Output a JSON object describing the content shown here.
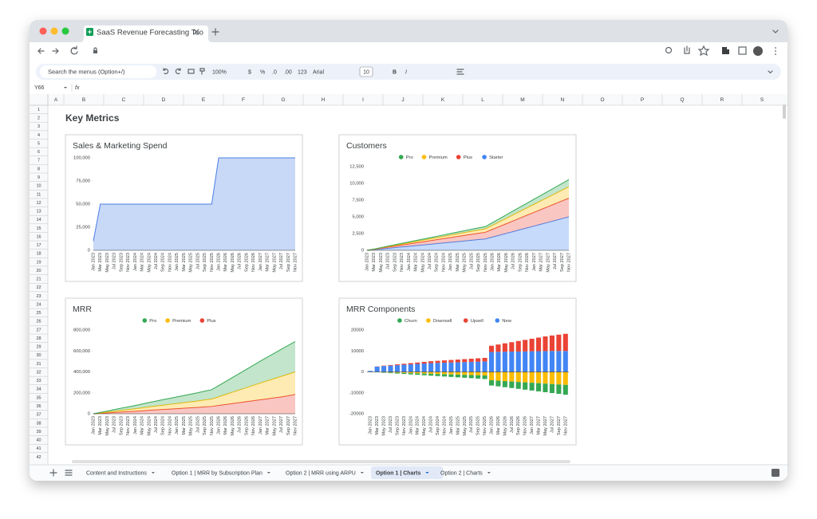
{
  "ui": {
    "tab_title": "SaaS Revenue Forecasting Too",
    "search": "Search the menus (Option+/)",
    "toolbar": [
      "100%",
      "$",
      "%",
      ".0",
      ".00",
      "123",
      "Arial",
      "10",
      "B",
      "I"
    ],
    "name_box": "Y66",
    "fx": "fx",
    "columns": [
      "A",
      "B",
      "C",
      "D",
      "E",
      "F",
      "G",
      "H",
      "I",
      "J",
      "K",
      "L",
      "M",
      "N",
      "O",
      "P",
      "Q",
      "R",
      "S"
    ],
    "rows": [
      1,
      2,
      3,
      4,
      5,
      6,
      7,
      8,
      9,
      10,
      11,
      12,
      13,
      14,
      15,
      16,
      17,
      18,
      19,
      20,
      21,
      22,
      23,
      24,
      25,
      26,
      27,
      28,
      29,
      30,
      31,
      32,
      33,
      34,
      35,
      36,
      37,
      38,
      39,
      40,
      41,
      42
    ],
    "heading": "Key Metrics",
    "sheets": [
      "Content and Instructions",
      "Option 1 | MRR by Subscription Plan",
      "Option 2 | MRR using ARPU",
      "Option 1 | Charts",
      "Option 2 | Charts"
    ]
  },
  "chart_data": [
    {
      "type": "area",
      "title": "Sales & Marketing Spend",
      "color": "#4a7fe6",
      "categories": [
        "Jan 2023",
        "Mar 2023",
        "May 2023",
        "Jul 2023",
        "Sep 2023",
        "Nov 2023",
        "Jan 2024",
        "Mar 2024",
        "May 2024",
        "Jul 2024",
        "Sep 2024",
        "Nov 2024",
        "Jan 2025",
        "Mar 2025",
        "May 2025",
        "Jul 2025",
        "Sep 2025",
        "Nov 2025",
        "Jan 2026",
        "Mar 2026",
        "May 2026",
        "Jul 2026",
        "Sep 2026",
        "Nov 2026",
        "Jan 2027",
        "Mar 2027",
        "May 2027",
        "Jul 2027",
        "Sep 2027",
        "Nov 2027"
      ],
      "values": [
        10000,
        50000,
        50000,
        50000,
        50000,
        50000,
        50000,
        50000,
        50000,
        50000,
        50000,
        50000,
        50000,
        50000,
        50000,
        50000,
        50000,
        50000,
        100000,
        100000,
        100000,
        100000,
        100000,
        100000,
        100000,
        100000,
        100000,
        100000,
        100000,
        100000
      ],
      "ylim": [
        0,
        100000
      ],
      "yticks": [
        0,
        {
          "value": 25000,
          "label": "25,000"
        },
        {
          "value": 50000,
          "label": "50,000"
        },
        {
          "value": 75000,
          "label": "75,000"
        },
        {
          "value": 100000,
          "label": "100,000"
        }
      ]
    },
    {
      "type": "area",
      "stacked": true,
      "title": "Customers",
      "categories": [
        "Jan 2023",
        "Mar 2023",
        "May 2023",
        "Jul 2023",
        "Sep 2023",
        "Nov 2023",
        "Jan 2024",
        "Mar 2024",
        "May 2024",
        "Jul 2024",
        "Sep 2024",
        "Nov 2024",
        "Jan 2025",
        "Mar 2025",
        "May 2025",
        "Jul 2025",
        "Sep 2025",
        "Nov 2025",
        "Jan 2026",
        "Mar 2026",
        "May 2026",
        "Jul 2026",
        "Sep 2026",
        "Nov 2026",
        "Jan 2027",
        "Mar 2027",
        "May 2027",
        "Jul 2027",
        "Sep 2027",
        "Nov 2027"
      ],
      "series": [
        {
          "name": "Pro",
          "color": "#34a853",
          "values": [
            0,
            20,
            40,
            60,
            80,
            100,
            120,
            140,
            160,
            180,
            200,
            220,
            240,
            260,
            280,
            300,
            320,
            340,
            400,
            460,
            520,
            580,
            640,
            700,
            760,
            820,
            880,
            940,
            1000,
            1060
          ]
        },
        {
          "name": "Premium",
          "color": "#fbbc04",
          "values": [
            0,
            30,
            60,
            90,
            120,
            150,
            180,
            210,
            240,
            270,
            300,
            330,
            360,
            390,
            420,
            450,
            480,
            500,
            600,
            700,
            800,
            900,
            1000,
            1100,
            1200,
            1300,
            1400,
            1500,
            1600,
            1700
          ]
        },
        {
          "name": "Plus",
          "color": "#ea4335",
          "values": [
            0,
            50,
            110,
            170,
            230,
            290,
            350,
            410,
            470,
            530,
            590,
            650,
            710,
            770,
            830,
            890,
            950,
            1000,
            1150,
            1300,
            1450,
            1600,
            1750,
            1900,
            2050,
            2200,
            2350,
            2500,
            2650,
            2800
          ]
        },
        {
          "name": "Starter",
          "color": "#4285f4",
          "values": [
            0,
            100,
            200,
            300,
            400,
            500,
            600,
            700,
            800,
            900,
            1000,
            1100,
            1200,
            1300,
            1400,
            1500,
            1600,
            1700,
            1975,
            2250,
            2525,
            2800,
            3075,
            3350,
            3625,
            3900,
            4175,
            4450,
            4725,
            5000
          ]
        }
      ],
      "ylim": [
        0,
        12500
      ],
      "yticks": [
        0,
        {
          "value": 2500,
          "label": "2,500"
        },
        {
          "value": 5000,
          "label": "5,000"
        },
        {
          "value": 7500,
          "label": "7,500"
        },
        {
          "value": 10000,
          "label": "10,000"
        },
        {
          "value": 12500,
          "label": "12,500"
        }
      ]
    },
    {
      "type": "area",
      "stacked": true,
      "title": "MRR",
      "categories": [
        "Jan 2023",
        "Mar 2023",
        "May 2023",
        "Jul 2023",
        "Sep 2023",
        "Nov 2023",
        "Jan 2024",
        "Mar 2024",
        "May 2024",
        "Jul 2024",
        "Sep 2024",
        "Nov 2024",
        "Jan 2025",
        "Mar 2025",
        "May 2025",
        "Jul 2025",
        "Sep 2025",
        "Nov 2025",
        "Jan 2026",
        "Mar 2026",
        "May 2026",
        "Jul 2026",
        "Sep 2026",
        "Nov 2026",
        "Jan 2027",
        "Mar 2027",
        "May 2027",
        "Jul 2027",
        "Sep 2027",
        "Nov 2027"
      ],
      "series": [
        {
          "name": "Pro",
          "color": "#34a853",
          "values": [
            0,
            5000,
            10000,
            16000,
            21000,
            26000,
            31000,
            37000,
            42000,
            47000,
            53000,
            58000,
            63000,
            68000,
            74000,
            79000,
            84000,
            90000,
            107000,
            124000,
            141000,
            158000,
            175000,
            192000,
            209000,
            226000,
            243000,
            260000,
            276000,
            290000
          ]
        },
        {
          "name": "Premium",
          "color": "#fbbc04",
          "values": [
            0,
            4000,
            8000,
            12000,
            16000,
            20000,
            24000,
            28000,
            33000,
            37000,
            41000,
            45000,
            49000,
            53000,
            57000,
            61000,
            66000,
            70000,
            82000,
            95000,
            108000,
            121000,
            134000,
            147000,
            160000,
            172000,
            184000,
            196000,
            206000,
            215000
          ]
        },
        {
          "name": "Plus",
          "color": "#ea4335",
          "values": [
            0,
            4000,
            8000,
            12000,
            16000,
            20000,
            24000,
            28000,
            33000,
            37000,
            41000,
            45000,
            49000,
            53000,
            57000,
            61000,
            66000,
            70000,
            80000,
            89000,
            98000,
            107000,
            116000,
            125000,
            134000,
            143000,
            152000,
            161000,
            172000,
            185000
          ]
        }
      ],
      "ylim": [
        0,
        800000
      ],
      "yticks": [
        0,
        {
          "value": 200000,
          "label": "200,000"
        },
        {
          "value": 400000,
          "label": "400,000"
        },
        {
          "value": 600000,
          "label": "600,000"
        },
        {
          "value": 800000,
          "label": "800,000"
        }
      ]
    },
    {
      "type": "bar",
      "stacked": true,
      "title": "MRR Components",
      "categories": [
        "Jan 2023",
        "Mar 2023",
        "May 2023",
        "Jul 2023",
        "Sep 2023",
        "Nov 2023",
        "Jan 2024",
        "Mar 2024",
        "May 2024",
        "Jul 2024",
        "Sep 2024",
        "Nov 2024",
        "Jan 2025",
        "Mar 2025",
        "May 2025",
        "Jul 2025",
        "Sep 2025",
        "Nov 2025",
        "Jan 2026",
        "Mar 2026",
        "May 2026",
        "Jul 2026",
        "Sep 2026",
        "Nov 2026",
        "Jan 2027",
        "Mar 2027",
        "May 2027",
        "Jul 2027",
        "Sep 2027",
        "Nov 2027"
      ],
      "series": [
        {
          "name": "Churn",
          "color": "#34a853",
          "values": [
            0,
            -100,
            -200,
            -300,
            -400,
            -500,
            -600,
            -700,
            -800,
            -900,
            -1000,
            -1100,
            -1200,
            -1300,
            -1400,
            -1500,
            -1600,
            -1700,
            -2500,
            -2700,
            -2900,
            -3100,
            -3300,
            -3500,
            -3700,
            -3900,
            -4100,
            -4300,
            -4500,
            -4700
          ]
        },
        {
          "name": "Downsell",
          "color": "#fbbc04",
          "values": [
            0,
            -100,
            -200,
            -300,
            -400,
            -500,
            -600,
            -700,
            -800,
            -900,
            -1000,
            -1100,
            -1200,
            -1300,
            -1400,
            -1500,
            -1600,
            -1700,
            -4000,
            -4200,
            -4400,
            -4600,
            -4800,
            -5000,
            -5200,
            -5400,
            -5600,
            -5800,
            -6000,
            -6200
          ]
        },
        {
          "name": "Upsell",
          "color": "#ea4335",
          "values": [
            0,
            100,
            200,
            300,
            400,
            500,
            600,
            700,
            800,
            900,
            1000,
            1100,
            1200,
            1300,
            1400,
            1500,
            1600,
            1700,
            3000,
            3500,
            4000,
            4500,
            5000,
            5500,
            6000,
            6500,
            7000,
            7400,
            7800,
            8200
          ]
        },
        {
          "name": "New",
          "color": "#4285f4",
          "values": [
            500,
            2500,
            2800,
            3000,
            3200,
            3400,
            3600,
            3800,
            4000,
            4200,
            4300,
            4400,
            4500,
            4600,
            4700,
            4800,
            4900,
            5000,
            9500,
            9600,
            9650,
            9700,
            9750,
            9800,
            9850,
            9900,
            9950,
            10000,
            10000,
            10000
          ]
        }
      ],
      "ylim": [
        -20000,
        20000
      ],
      "yticks": [
        -20000,
        -10000,
        0,
        10000,
        20000
      ]
    }
  ]
}
